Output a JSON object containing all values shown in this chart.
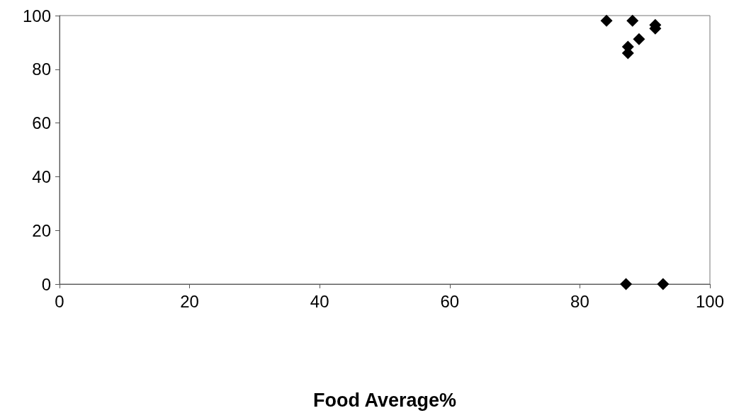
{
  "chart_data": {
    "type": "scatter",
    "xlabel": "Food Average%",
    "x": [
      84.1,
      88.1,
      91.6,
      91.6,
      89.1,
      87.4,
      87.4,
      87.1,
      92.8
    ],
    "values": [
      98.1,
      98.1,
      96.5,
      95.2,
      91.2,
      88.4,
      86.0,
      0,
      0
    ],
    "color": "#000000",
    "marker": "diamond",
    "xlim": [
      0,
      100
    ],
    "xticks": [
      0,
      20,
      40,
      60,
      80,
      100
    ],
    "ylim": [
      0,
      100
    ],
    "yticks": [
      0,
      20,
      40,
      60,
      80,
      100
    ]
  }
}
